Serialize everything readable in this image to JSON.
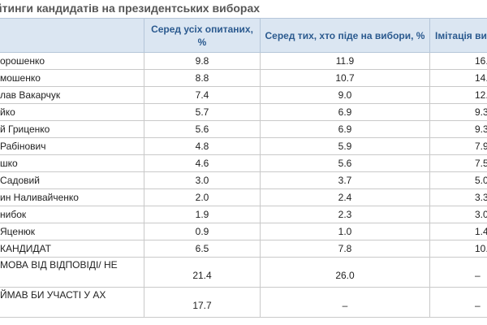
{
  "title": "йтинги кандидатів на президентських виборах",
  "table": {
    "headers": [
      "",
      "Серед усіх опитаних, %",
      "Серед тих, хто піде на вибори, %",
      "Імітація ви"
    ],
    "rows": [
      {
        "name": "орошенко",
        "all": "9.8",
        "voters": "11.9",
        "imitation": "16."
      },
      {
        "name": "мошенко",
        "all": "8.8",
        "voters": "10.7",
        "imitation": "14."
      },
      {
        "name": "лав Вакарчук",
        "all": "7.4",
        "voters": "9.0",
        "imitation": "12."
      },
      {
        "name": "йко",
        "all": "5.7",
        "voters": "6.9",
        "imitation": "9.3"
      },
      {
        "name": "й Гриценко",
        "all": "5.6",
        "voters": "6.9",
        "imitation": "9.3"
      },
      {
        "name": "Рабінович",
        "all": "4.8",
        "voters": "5.9",
        "imitation": "7.9"
      },
      {
        "name": "шко",
        "all": "4.6",
        "voters": "5.6",
        "imitation": "7.5"
      },
      {
        "name": "Садовий",
        "all": "3.0",
        "voters": "3.7",
        "imitation": "5.0"
      },
      {
        "name": "ин Наливайченко",
        "all": "2.0",
        "voters": "2.4",
        "imitation": "3.3"
      },
      {
        "name": "нибок",
        "all": "1.9",
        "voters": "2.3",
        "imitation": "3.0"
      },
      {
        "name": "Яценюк",
        "all": "0.9",
        "voters": "1.0",
        "imitation": "1.4"
      },
      {
        "name": "КАНДИДАТ",
        "all": "6.5",
        "voters": "7.8",
        "imitation": "10."
      },
      {
        "name": "МОВА ВІД ВІДПОВІДІ/ НЕ",
        "all": "21.4",
        "voters": "26.0",
        "imitation": "–"
      },
      {
        "name": "ЙМАВ БИ УЧАСТІ У АХ",
        "all": "17.7",
        "voters": "–",
        "imitation": "–"
      }
    ]
  }
}
